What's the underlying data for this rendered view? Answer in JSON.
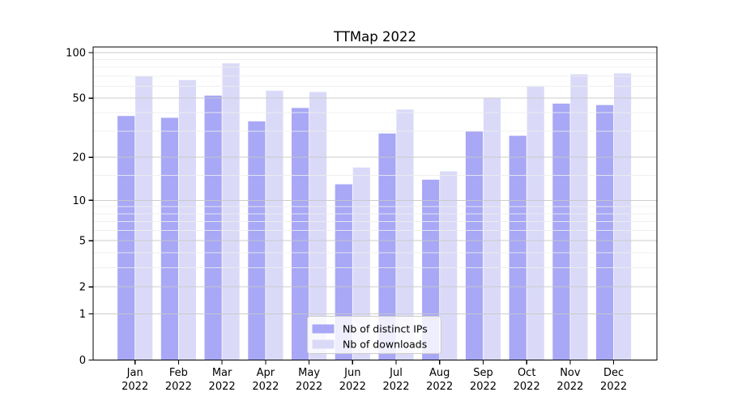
{
  "chart_data": {
    "type": "bar",
    "title": "TTMap 2022",
    "categories": [
      "Jan",
      "Feb",
      "Mar",
      "Apr",
      "May",
      "Jun",
      "Jul",
      "Aug",
      "Sep",
      "Oct",
      "Nov",
      "Dec"
    ],
    "year_label": "2022",
    "series": [
      {
        "name": "Nb of distinct IPs",
        "color": "#a8a8f6",
        "values": [
          38,
          37,
          52,
          35,
          43,
          13,
          29,
          14,
          30,
          28,
          46,
          45
        ]
      },
      {
        "name": "Nb of downloads",
        "color": "#dadaf8",
        "values": [
          70,
          66,
          85,
          56,
          55,
          17,
          42,
          16,
          50,
          60,
          72,
          73
        ]
      }
    ],
    "xlabel": "",
    "ylabel": "",
    "yscale": "symlog",
    "yscale_note": "position proportional to log10(1+value)",
    "y_ticks": [
      0,
      1,
      2,
      5,
      10,
      20,
      50,
      100
    ],
    "y_minor_ticks": [
      3,
      4,
      6,
      7,
      8,
      9,
      15,
      30,
      40,
      60,
      70,
      80,
      90
    ],
    "ylim": [
      0,
      108
    ],
    "grid": true,
    "legend_position": "lower center",
    "colors": {
      "frame": "#000000",
      "major_grid": "#c8c8c8",
      "minor_grid": "#ededed",
      "background": "#ffffff",
      "legend_border": "#cccccc"
    }
  }
}
